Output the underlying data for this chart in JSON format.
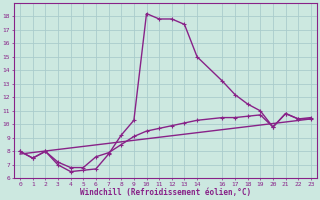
{
  "xlabel": "Windchill (Refroidissement éolien,°C)",
  "bg_color": "#cce8e0",
  "line_color": "#882288",
  "grid_color": "#aacccc",
  "xlim": [
    -0.5,
    23.5
  ],
  "ylim": [
    6,
    19
  ],
  "yticks": [
    6,
    7,
    8,
    9,
    10,
    11,
    12,
    13,
    14,
    15,
    16,
    17,
    18
  ],
  "xticks": [
    0,
    1,
    2,
    3,
    4,
    5,
    6,
    7,
    8,
    9,
    10,
    11,
    12,
    13,
    14,
    16,
    17,
    18,
    19,
    20,
    21,
    22,
    23
  ],
  "series1_x": [
    0,
    1,
    2,
    3,
    4,
    5,
    6,
    7,
    8,
    9,
    10,
    11,
    12,
    13,
    14,
    16,
    17,
    18,
    19,
    20,
    21,
    22,
    23
  ],
  "series1_y": [
    8.0,
    7.5,
    8.0,
    7.0,
    6.5,
    6.6,
    6.7,
    7.8,
    9.2,
    10.3,
    18.2,
    17.8,
    17.8,
    17.4,
    15.0,
    13.2,
    12.2,
    11.5,
    11.0,
    9.8,
    10.8,
    10.4,
    10.5
  ],
  "series2_x": [
    0,
    1,
    2,
    3,
    4,
    5,
    6,
    7,
    8,
    9,
    10,
    11,
    12,
    13,
    14,
    16,
    17,
    18,
    19,
    20,
    21,
    22,
    23
  ],
  "series2_y": [
    8.0,
    7.5,
    8.0,
    7.2,
    6.8,
    6.8,
    7.6,
    7.9,
    8.5,
    9.1,
    9.5,
    9.7,
    9.9,
    10.1,
    10.3,
    10.5,
    10.5,
    10.6,
    10.7,
    9.8,
    10.8,
    10.4,
    10.4
  ],
  "series3_x": [
    0,
    23
  ],
  "series3_y": [
    7.8,
    10.4
  ],
  "linewidth": 1.0,
  "markersize": 3
}
